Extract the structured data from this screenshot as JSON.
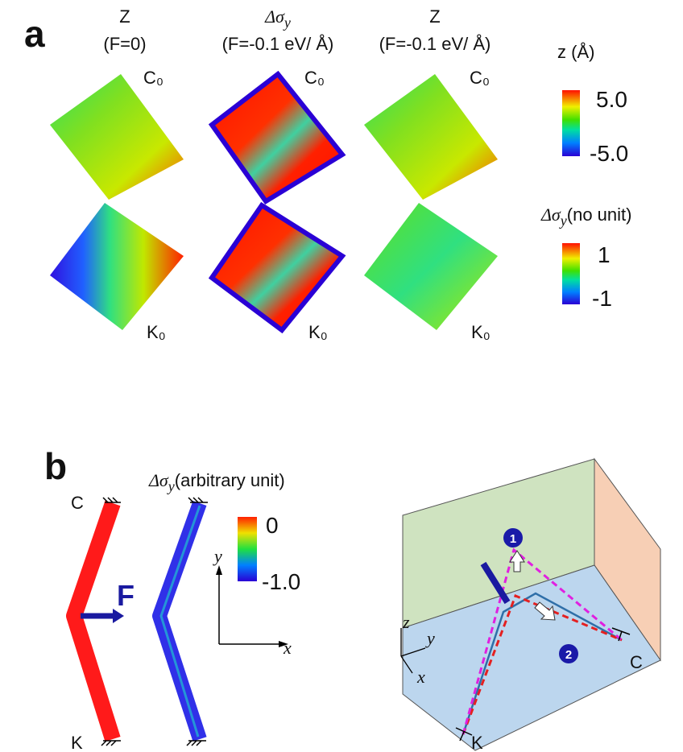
{
  "panel_a": {
    "label": "a",
    "columns": [
      {
        "title": "Z",
        "subtitle": "(F=0)",
        "top_label": "C₀",
        "bottom_label": "K₀"
      },
      {
        "title": "Δσ",
        "title_subscript": "y",
        "subtitle": "(F=-0.1 eV/ Å)",
        "top_label": "C₀",
        "bottom_label": "K₀"
      },
      {
        "title": "Z",
        "subtitle": "(F=-0.1 eV/ Å)",
        "top_label": "C₀",
        "bottom_label": "K₀"
      }
    ],
    "colorbars": [
      {
        "title": "z (Å)",
        "max": "5.0",
        "min": "-5.0"
      },
      {
        "title_symbol": "Δσ",
        "title_subscript": "y",
        "title_suffix": "(no unit)",
        "max": "1",
        "min": "-1"
      }
    ]
  },
  "panel_b": {
    "label": "b",
    "colorbar": {
      "title_symbol": "Δσ",
      "title_subscript": "y",
      "title_suffix": "(arbitrary unit)",
      "max": "0",
      "min": "-1.0"
    },
    "rod_top": "C",
    "rod_bottom": "K",
    "force": "F",
    "axes": {
      "y": "y",
      "x": "x"
    },
    "schematic": {
      "z": "z",
      "y": "y",
      "x": "x",
      "marker_1": "1",
      "marker_2": "2",
      "end_c": "C",
      "end_k": "K"
    }
  }
}
